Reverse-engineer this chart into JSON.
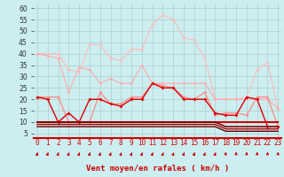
{
  "x": [
    0,
    1,
    2,
    3,
    4,
    5,
    6,
    7,
    8,
    9,
    10,
    11,
    12,
    13,
    14,
    15,
    16,
    17,
    18,
    19,
    20,
    21,
    22,
    23
  ],
  "series": [
    {
      "name": "rafales_top",
      "color": "#ffbbbb",
      "linewidth": 0.8,
      "marker": "D",
      "markersize": 1.8,
      "zorder": 2,
      "y": [
        40,
        40,
        40,
        33,
        32,
        44,
        44,
        38,
        37,
        42,
        42,
        53,
        57,
        55,
        47,
        46,
        38,
        20,
        20,
        20,
        21,
        33,
        36,
        16
      ]
    },
    {
      "name": "vent_moyen_descending",
      "color": "#ffaaaa",
      "linewidth": 0.8,
      "marker": "D",
      "markersize": 1.8,
      "zorder": 2,
      "y": [
        40,
        39,
        38,
        23,
        34,
        33,
        27,
        29,
        27,
        27,
        35,
        27,
        27,
        27,
        27,
        27,
        27,
        20,
        20,
        20,
        20,
        20,
        20,
        16
      ]
    },
    {
      "name": "vent_moyen_mid",
      "color": "#ff8888",
      "linewidth": 0.9,
      "marker": "D",
      "markersize": 1.8,
      "zorder": 3,
      "y": [
        21,
        21,
        21,
        10,
        10,
        10,
        23,
        18,
        18,
        21,
        21,
        27,
        26,
        25,
        21,
        20,
        23,
        13,
        14,
        14,
        13,
        21,
        21,
        8
      ]
    },
    {
      "name": "line_red_main",
      "color": "#dd0000",
      "linewidth": 1.0,
      "marker": "D",
      "markersize": 2.0,
      "zorder": 4,
      "y": [
        21,
        20,
        10,
        14,
        10,
        20,
        20,
        18,
        17,
        20,
        20,
        27,
        25,
        25,
        20,
        20,
        20,
        14,
        13,
        13,
        21,
        20,
        8,
        8
      ]
    },
    {
      "name": "line_flat_red1",
      "color": "#cc0000",
      "linewidth": 1.5,
      "marker": null,
      "markersize": 0,
      "zorder": 3,
      "y": [
        10,
        10,
        10,
        10,
        10,
        10,
        10,
        10,
        10,
        10,
        10,
        10,
        10,
        10,
        10,
        10,
        10,
        10,
        10,
        10,
        10,
        10,
        10,
        10
      ]
    },
    {
      "name": "line_flat_dark1",
      "color": "#880000",
      "linewidth": 1.2,
      "marker": null,
      "markersize": 0,
      "zorder": 4,
      "y": [
        10,
        10,
        10,
        10,
        10,
        10,
        10,
        10,
        10,
        10,
        10,
        10,
        10,
        10,
        10,
        10,
        10,
        10,
        8,
        8,
        8,
        8,
        8,
        8
      ]
    },
    {
      "name": "line_flat_dark2",
      "color": "#aa0000",
      "linewidth": 1.0,
      "marker": null,
      "markersize": 0,
      "zorder": 4,
      "y": [
        9,
        9,
        9,
        9,
        9,
        9,
        9,
        9,
        9,
        9,
        9,
        9,
        9,
        9,
        9,
        9,
        9,
        9,
        7,
        7,
        7,
        7,
        7,
        7
      ]
    },
    {
      "name": "line_flat_dark3",
      "color": "#660000",
      "linewidth": 1.0,
      "marker": null,
      "markersize": 0,
      "zorder": 5,
      "y": [
        8,
        8,
        8,
        8,
        8,
        8,
        8,
        8,
        8,
        8,
        8,
        8,
        8,
        8,
        8,
        8,
        8,
        8,
        6,
        6,
        6,
        6,
        6,
        6
      ]
    }
  ],
  "yticks": [
    5,
    10,
    15,
    20,
    25,
    30,
    35,
    40,
    45,
    50,
    55,
    60
  ],
  "ylim": [
    3,
    62
  ],
  "xlim": [
    -0.3,
    23.3
  ],
  "xlabel": "Vent moyen/en rafales ( km/h )",
  "background_color": "#cceef0",
  "grid_color": "#aacccc",
  "tick_fontsize": 5.5,
  "label_fontsize": 6.5,
  "arrow_directions": [
    45,
    45,
    45,
    45,
    45,
    45,
    45,
    45,
    45,
    45,
    45,
    45,
    45,
    45,
    45,
    45,
    45,
    45,
    0,
    0,
    10,
    0,
    0,
    0
  ]
}
